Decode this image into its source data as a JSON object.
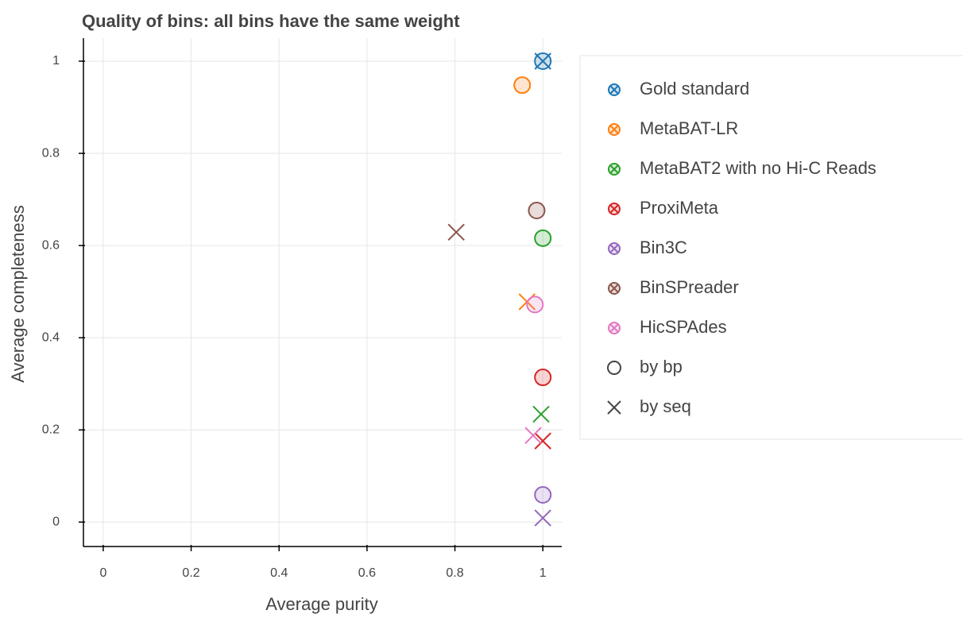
{
  "chart_data": {
    "type": "scatter",
    "title": "Quality of bins: all bins have the same weight",
    "x_label": "Average purity",
    "y_label": "Average completeness",
    "xlim": [
      -0.045,
      1.043
    ],
    "ylim": [
      -0.053,
      1.05
    ],
    "xticks": [
      0,
      0.2,
      0.4,
      0.6,
      0.8,
      1
    ],
    "yticks": [
      0,
      0.2,
      0.4,
      0.6,
      0.8,
      1
    ],
    "grid": true,
    "legend": "right",
    "marker_legend": [
      "by bp",
      "by seq"
    ],
    "series": [
      {
        "name": "Gold standard",
        "color": "#1f77b4",
        "bp": {
          "x": 1.0,
          "y": 1.0
        },
        "seq": {
          "x": 1.0,
          "y": 1.0
        }
      },
      {
        "name": "MetaBAT-LR",
        "color": "#ff7f0e",
        "bp": {
          "x": 0.953,
          "y": 0.948
        },
        "seq": {
          "x": 0.964,
          "y": 0.478
        }
      },
      {
        "name": "MetaBAT2 with no Hi-C Reads",
        "color": "#2ca02c",
        "bp": {
          "x": 1.0,
          "y": 0.616
        },
        "seq": {
          "x": 0.996,
          "y": 0.234
        }
      },
      {
        "name": "ProxiMeta",
        "color": "#d62728",
        "bp": {
          "x": 1.0,
          "y": 0.314
        },
        "seq": {
          "x": 1.0,
          "y": 0.176
        }
      },
      {
        "name": "Bin3C",
        "color": "#9467bd",
        "bp": {
          "x": 1.0,
          "y": 0.059
        },
        "seq": {
          "x": 1.0,
          "y": 0.009
        }
      },
      {
        "name": "BinSPreader",
        "color": "#8c564b",
        "bp": {
          "x": 0.986,
          "y": 0.676
        },
        "seq": {
          "x": 0.803,
          "y": 0.629
        }
      },
      {
        "name": "HicSPAdes",
        "color": "#e377c2",
        "bp": {
          "x": 0.982,
          "y": 0.472
        },
        "seq": {
          "x": 0.978,
          "y": 0.188
        }
      }
    ]
  }
}
